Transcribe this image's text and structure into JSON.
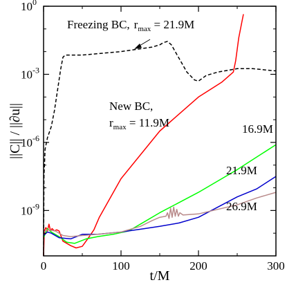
{
  "chart_data": {
    "type": "line",
    "xlabel": "t/M",
    "ylabel": "||C|| / ||∂u||",
    "xlim": [
      0,
      300
    ],
    "ylim_log10": [
      -11,
      0
    ],
    "yscale": "log",
    "x_ticks": [
      0,
      100,
      200,
      300
    ],
    "x_tick_labels": [
      "0",
      "100",
      "200",
      "300"
    ],
    "y_ticks": [
      -9,
      -6,
      -3,
      0
    ],
    "y_tick_labels": [
      {
        "base": "10",
        "exp": "-9"
      },
      {
        "base": "10",
        "exp": "-6"
      },
      {
        "base": "10",
        "exp": "-3"
      },
      {
        "base": "10",
        "exp": "0"
      }
    ],
    "annotations": {
      "freezing": {
        "text": "Freezing BC,",
        "sub_base": "r",
        "sub": "max",
        "rest": " = 21.9M"
      },
      "new_bc_line1": "New BC,",
      "new_bc_line2": {
        "sub_base": "r",
        "sub": "max",
        "rest": " = 11.9M"
      },
      "label_169": "16.9M",
      "label_219": "21.9M",
      "label_269": "26.9M"
    },
    "series": [
      {
        "id": "freezing",
        "color": "#000000",
        "dashed": true,
        "points": [
          [
            0,
            -11
          ],
          [
            0.5,
            -7.5
          ],
          [
            2,
            -6.3
          ],
          [
            5,
            -5.8
          ],
          [
            10,
            -5.3
          ],
          [
            14,
            -4.6
          ],
          [
            18,
            -3.7
          ],
          [
            22,
            -2.8
          ],
          [
            25,
            -2.25
          ],
          [
            28,
            -2.15
          ],
          [
            50,
            -2.15
          ],
          [
            100,
            -2.0
          ],
          [
            140,
            -1.8
          ],
          [
            150,
            -1.7
          ],
          [
            155,
            -1.6
          ],
          [
            160,
            -1.55
          ],
          [
            165,
            -1.7
          ],
          [
            175,
            -2.3
          ],
          [
            185,
            -2.9
          ],
          [
            195,
            -3.25
          ],
          [
            200,
            -3.3
          ],
          [
            210,
            -3.05
          ],
          [
            225,
            -2.9
          ],
          [
            250,
            -2.75
          ],
          [
            270,
            -2.75
          ],
          [
            290,
            -2.82
          ],
          [
            300,
            -2.85
          ]
        ]
      },
      {
        "id": "new_119",
        "color": "#ff0000",
        "dashed": false,
        "points": [
          [
            0,
            -11
          ],
          [
            1,
            -9.9
          ],
          [
            3,
            -9.75
          ],
          [
            5,
            -9.9
          ],
          [
            7,
            -9.6
          ],
          [
            9,
            -9.9
          ],
          [
            11,
            -9.8
          ],
          [
            14,
            -9.9
          ],
          [
            17,
            -9.85
          ],
          [
            20,
            -9.9
          ],
          [
            25,
            -10.35
          ],
          [
            35,
            -10.55
          ],
          [
            42,
            -10.65
          ],
          [
            50,
            -10.58
          ],
          [
            58,
            -10.2
          ],
          [
            65,
            -9.85
          ],
          [
            72,
            -9.3
          ],
          [
            100,
            -7.6
          ],
          [
            150,
            -5.5
          ],
          [
            200,
            -4.0
          ],
          [
            230,
            -3.35
          ],
          [
            245,
            -2.9
          ],
          [
            248,
            -2.4
          ],
          [
            252,
            -1.4
          ],
          [
            256,
            -0.7
          ],
          [
            258,
            -0.35
          ]
        ]
      },
      {
        "id": "new_169",
        "color": "#00ff00",
        "dashed": false,
        "points": [
          [
            0,
            -10.2
          ],
          [
            5,
            -9.8
          ],
          [
            10,
            -9.95
          ],
          [
            20,
            -10.15
          ],
          [
            30,
            -10.4
          ],
          [
            40,
            -10.45
          ],
          [
            55,
            -10.25
          ],
          [
            70,
            -10.15
          ],
          [
            90,
            -10.05
          ],
          [
            110,
            -9.9
          ],
          [
            130,
            -9.5
          ],
          [
            150,
            -9.1
          ],
          [
            200,
            -8.2
          ],
          [
            250,
            -7.2
          ],
          [
            300,
            -6.1
          ]
        ]
      },
      {
        "id": "new_219",
        "color": "#0000cc",
        "dashed": false,
        "points": [
          [
            0,
            -10.1
          ],
          [
            5,
            -9.95
          ],
          [
            10,
            -10.0
          ],
          [
            20,
            -10.2
          ],
          [
            35,
            -10.25
          ],
          [
            50,
            -10.05
          ],
          [
            70,
            -10.05
          ],
          [
            100,
            -9.95
          ],
          [
            130,
            -9.8
          ],
          [
            150,
            -9.7
          ],
          [
            175,
            -9.55
          ],
          [
            200,
            -9.3
          ],
          [
            225,
            -8.85
          ],
          [
            250,
            -8.4
          ],
          [
            275,
            -8.05
          ],
          [
            300,
            -7.5
          ]
        ]
      },
      {
        "id": "new_269",
        "color": "#b98b8b",
        "dashed": false,
        "points": [
          [
            0,
            -9.95
          ],
          [
            5,
            -9.85
          ],
          [
            15,
            -9.9
          ],
          [
            25,
            -10.1
          ],
          [
            35,
            -10.15
          ],
          [
            50,
            -10.1
          ],
          [
            70,
            -10.05
          ],
          [
            100,
            -9.95
          ],
          [
            125,
            -9.7
          ],
          [
            140,
            -9.45
          ],
          [
            150,
            -9.3
          ],
          [
            158,
            -9.25
          ],
          [
            160,
            -9.1
          ],
          [
            162,
            -9.35
          ],
          [
            164,
            -8.9
          ],
          [
            166,
            -9.3
          ],
          [
            168,
            -8.85
          ],
          [
            170,
            -9.25
          ],
          [
            172,
            -8.95
          ],
          [
            174,
            -9.25
          ],
          [
            176,
            -9.1
          ],
          [
            180,
            -9.2
          ],
          [
            200,
            -9.15
          ],
          [
            225,
            -8.95
          ],
          [
            250,
            -8.75
          ],
          [
            275,
            -8.45
          ],
          [
            300,
            -8.2
          ]
        ]
      }
    ]
  }
}
